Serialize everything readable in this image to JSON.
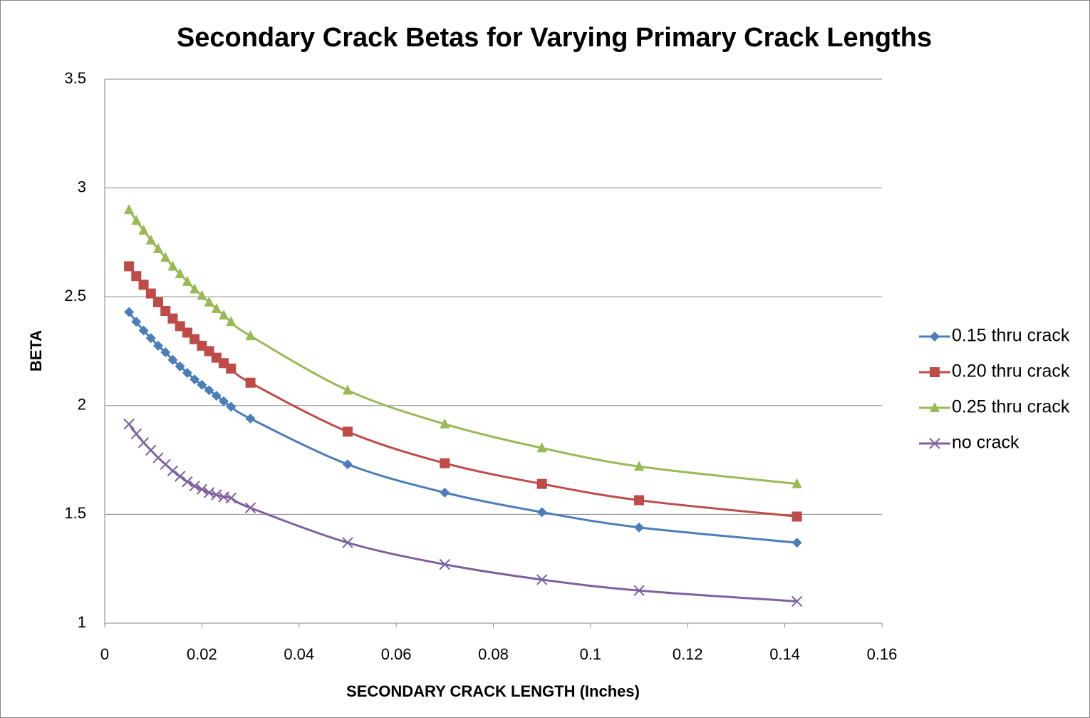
{
  "chart_data": {
    "type": "line",
    "title": "Secondary Crack Betas for Varying Primary Crack Lengths",
    "x_label": "SECONDARY CRACK LENGTH (Inches)",
    "y_label": "BETA",
    "x": [
      0.005,
      0.0065,
      0.008,
      0.0095,
      0.011,
      0.0125,
      0.014,
      0.0155,
      0.017,
      0.0185,
      0.02,
      0.0215,
      0.023,
      0.0245,
      0.026,
      0.03,
      0.05,
      0.07,
      0.09,
      0.11,
      0.1425
    ],
    "series": [
      {
        "name": "0.15 thru crack",
        "color": "#4a7ebb",
        "marker": "diamond",
        "values": [
          2.43,
          2.385,
          2.345,
          2.31,
          2.275,
          2.245,
          2.21,
          2.18,
          2.15,
          2.12,
          2.095,
          2.07,
          2.045,
          2.02,
          1.995,
          1.94,
          1.73,
          1.6,
          1.51,
          1.44,
          1.37
        ]
      },
      {
        "name": "0.20 thru crack",
        "color": "#be4b48",
        "marker": "square",
        "values": [
          2.64,
          2.595,
          2.555,
          2.515,
          2.475,
          2.435,
          2.4,
          2.365,
          2.335,
          2.305,
          2.275,
          2.25,
          2.22,
          2.195,
          2.17,
          2.105,
          1.88,
          1.735,
          1.64,
          1.565,
          1.49
        ]
      },
      {
        "name": "0.25 thru crack",
        "color": "#98b954",
        "marker": "triangle",
        "values": [
          2.9,
          2.85,
          2.805,
          2.76,
          2.72,
          2.68,
          2.64,
          2.605,
          2.57,
          2.535,
          2.505,
          2.475,
          2.445,
          2.415,
          2.385,
          2.32,
          2.07,
          1.915,
          1.805,
          1.72,
          1.64
        ]
      },
      {
        "name": "no crack",
        "color": "#7d60a0",
        "marker": "x",
        "values": [
          1.915,
          1.87,
          1.83,
          1.795,
          1.76,
          1.73,
          1.7,
          1.675,
          1.65,
          1.63,
          1.615,
          1.6,
          1.59,
          1.58,
          1.575,
          1.53,
          1.37,
          1.27,
          1.2,
          1.15,
          1.1
        ]
      }
    ],
    "xlim": [
      0,
      0.16
    ],
    "xticks": [
      0,
      0.02,
      0.04,
      0.06,
      0.08,
      0.1,
      0.12,
      0.14,
      0.16
    ],
    "ylim": [
      1,
      3.5
    ],
    "yticks": [
      1,
      1.5,
      2,
      2.5,
      3,
      3.5
    ],
    "grid": true,
    "legend": "right"
  }
}
